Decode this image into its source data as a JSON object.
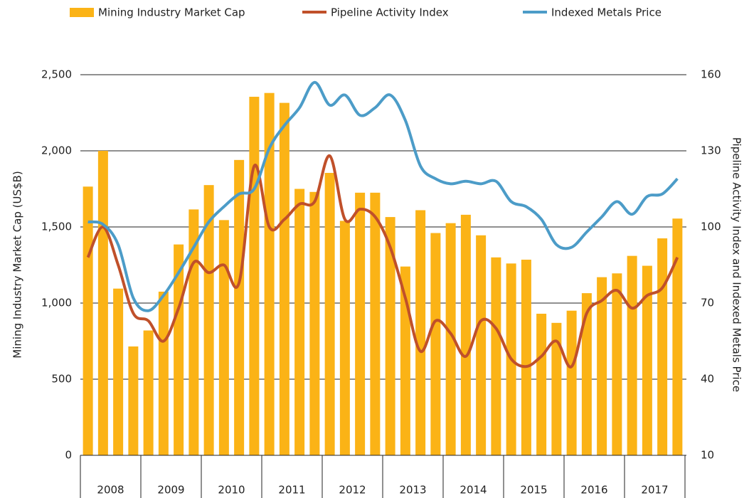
{
  "chart_data": {
    "type": "bar-line",
    "groups": [
      "2008",
      "2009",
      "2010",
      "2011",
      "2012",
      "2013",
      "2014",
      "2015",
      "2016",
      "2017"
    ],
    "categories": [
      null,
      null,
      null,
      null,
      null,
      null,
      null,
      null,
      null,
      null,
      null,
      null,
      null,
      null,
      null,
      null,
      null,
      null,
      null,
      null,
      null,
      null,
      null,
      null,
      null,
      null,
      null,
      null,
      null,
      null,
      null,
      null,
      null,
      null,
      null,
      null,
      null,
      null,
      null,
      null
    ],
    "series": [
      {
        "name": "Mining Industry Market Cap",
        "type": "bar",
        "color": "#fbb316",
        "values": [
          1765,
          2000,
          1095,
          715,
          820,
          1075,
          1385,
          1615,
          1775,
          1545,
          1940,
          2355,
          2380,
          2315,
          1750,
          1730,
          1855,
          1540,
          1725,
          1725,
          1565,
          1240,
          1610,
          1460,
          1525,
          1580,
          1445,
          1300,
          1260,
          1285,
          930,
          870,
          950,
          1065,
          1170,
          1195,
          1310,
          1245,
          1425,
          1555
        ]
      },
      {
        "name": "Pipeline Activity Index",
        "type": "line",
        "axis": "y2",
        "color": "#c0502a",
        "values": [
          88,
          100,
          85,
          66,
          63,
          55,
          68,
          86,
          82,
          85,
          78,
          124,
          100,
          103,
          109,
          110,
          128,
          103,
          107,
          104,
          92,
          72,
          51,
          63,
          58,
          49,
          63,
          60,
          48,
          45,
          49,
          55,
          45,
          66,
          71,
          75,
          68,
          73,
          76,
          88
        ]
      },
      {
        "name": "Indexed Metals Price",
        "type": "line",
        "axis": "y2",
        "color": "#4c9cc8",
        "values": [
          102,
          101,
          93,
          72,
          67,
          73,
          82,
          92,
          102,
          108,
          113,
          115,
          131,
          140,
          147,
          157,
          148,
          152,
          144,
          147,
          152,
          142,
          124,
          119,
          117,
          118,
          117,
          118,
          110,
          108,
          103,
          93,
          92,
          98,
          104,
          110,
          105,
          112,
          113,
          119
        ]
      }
    ],
    "ylabel": "Mining Industry Market Cap (US$B)",
    "y2label": "Pipeline Activity Index and Indexed Metals Price",
    "ylim": [
      0,
      2500
    ],
    "yticks": [
      0,
      500,
      {
        "value": 1000,
        "label": "1,000"
      },
      {
        "value": 1500,
        "label": "1,500"
      },
      {
        "value": 2000,
        "label": "2,000"
      },
      {
        "value": 2500,
        "label": "2,500"
      }
    ],
    "y2lim": [
      10,
      160
    ],
    "y2ticks": [
      10,
      40,
      70,
      100,
      130,
      160
    ],
    "grid": true,
    "legend": "top"
  }
}
